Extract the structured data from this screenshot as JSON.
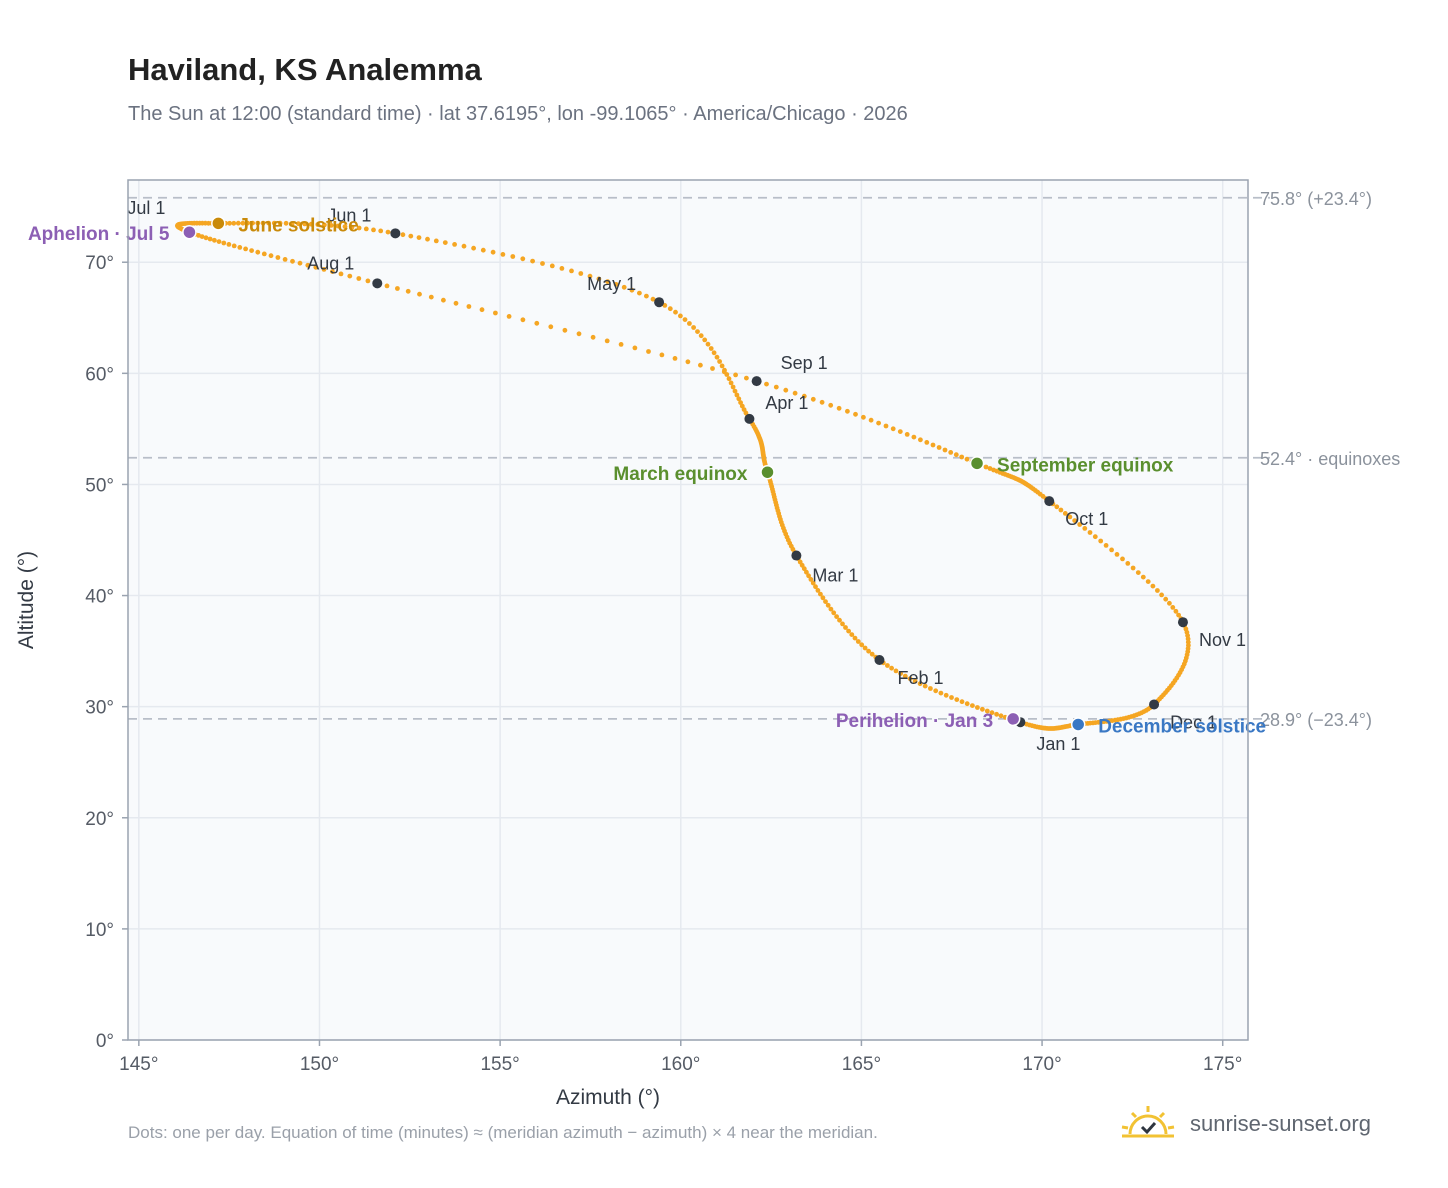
{
  "header": {
    "title": "Haviland, KS Analemma",
    "subtitle": "The Sun at 12:00 (standard time) · lat 37.6195°, lon -99.1065° · America/Chicago · 2026"
  },
  "footer": {
    "note": "Dots: one per day. Equation of time (minutes) ≈ (meridian azimuth − azimuth) × 4 near the meridian.",
    "brand": "sunrise-sunset.org",
    "brand_icon": "sun-check-icon"
  },
  "colors": {
    "curve": "#f5a623",
    "month_dot": "#333a44",
    "solstice_june": "#c98a0a",
    "solstice_december": "#3a78c4",
    "equinox": "#5a8f2e",
    "apsis": "#8c5fb4",
    "plot_bg": "#f8fafc",
    "grid": "#e5e9ef",
    "ref_line": "#b8bec8"
  },
  "chart_data": {
    "type": "scatter",
    "xlabel": "Azimuth (°)",
    "ylabel": "Altitude (°)",
    "xlim": [
      144.7,
      175.7
    ],
    "ylim": [
      0,
      77.4
    ],
    "xticks": [
      145,
      150,
      155,
      160,
      165,
      170,
      175
    ],
    "yticks": [
      0,
      10,
      20,
      30,
      40,
      50,
      60,
      70
    ],
    "tick_suffix": "°",
    "grid": true,
    "reference_lines": [
      {
        "y": 75.8,
        "label": "75.8° (+23.4°)"
      },
      {
        "y": 52.4,
        "label": "52.4° · equinoxes"
      },
      {
        "y": 28.9,
        "label": "28.9° (−23.4°)"
      }
    ],
    "series": [
      {
        "x": [
          169.4,
          165.5,
          163.2,
          162.4,
          161.9,
          159.4,
          152.1,
          147.2,
          146.4,
          151.6,
          162.1,
          168.2,
          170.2,
          173.9,
          173.1,
          171.0,
          169.4
        ],
        "y": [
          28.6,
          34.2,
          43.6,
          51.1,
          55.9,
          66.4,
          72.6,
          73.5,
          72.7,
          68.1,
          59.3,
          51.9,
          48.5,
          37.6,
          30.2,
          28.4,
          28.6
        ]
      }
    ],
    "month_markers": [
      {
        "label": "Jan 1",
        "x": 169.4,
        "y": 28.6
      },
      {
        "label": "Feb 1",
        "x": 165.5,
        "y": 34.2
      },
      {
        "label": "Mar 1",
        "x": 163.2,
        "y": 43.6
      },
      {
        "label": "Apr 1",
        "x": 161.9,
        "y": 55.9
      },
      {
        "label": "May 1",
        "x": 159.4,
        "y": 66.4
      },
      {
        "label": "Jun 1",
        "x": 152.1,
        "y": 72.6
      },
      {
        "label": "Jul 1",
        "x": 146.4,
        "y": 72.9
      },
      {
        "label": "Aug 1",
        "x": 151.6,
        "y": 68.1
      },
      {
        "label": "Sep 1",
        "x": 162.1,
        "y": 59.3
      },
      {
        "label": "Oct 1",
        "x": 170.2,
        "y": 48.5
      },
      {
        "label": "Nov 1",
        "x": 173.9,
        "y": 37.6
      },
      {
        "label": "Dec 1",
        "x": 173.1,
        "y": 30.2
      }
    ],
    "events": [
      {
        "label": "June solstice",
        "x": 147.2,
        "y": 73.5,
        "kind": "solstice_june"
      },
      {
        "label": "December solstice",
        "x": 171.0,
        "y": 28.4,
        "kind": "solstice_december"
      },
      {
        "label": "March equinox",
        "x": 162.4,
        "y": 51.1,
        "kind": "equinox"
      },
      {
        "label": "September equinox",
        "x": 168.2,
        "y": 51.9,
        "kind": "equinox"
      },
      {
        "label": "Aphelion · Jul 5",
        "x": 146.4,
        "y": 72.7,
        "kind": "apsis"
      },
      {
        "label": "Perihelion · Jan 3",
        "x": 169.2,
        "y": 28.9,
        "kind": "apsis"
      }
    ]
  }
}
